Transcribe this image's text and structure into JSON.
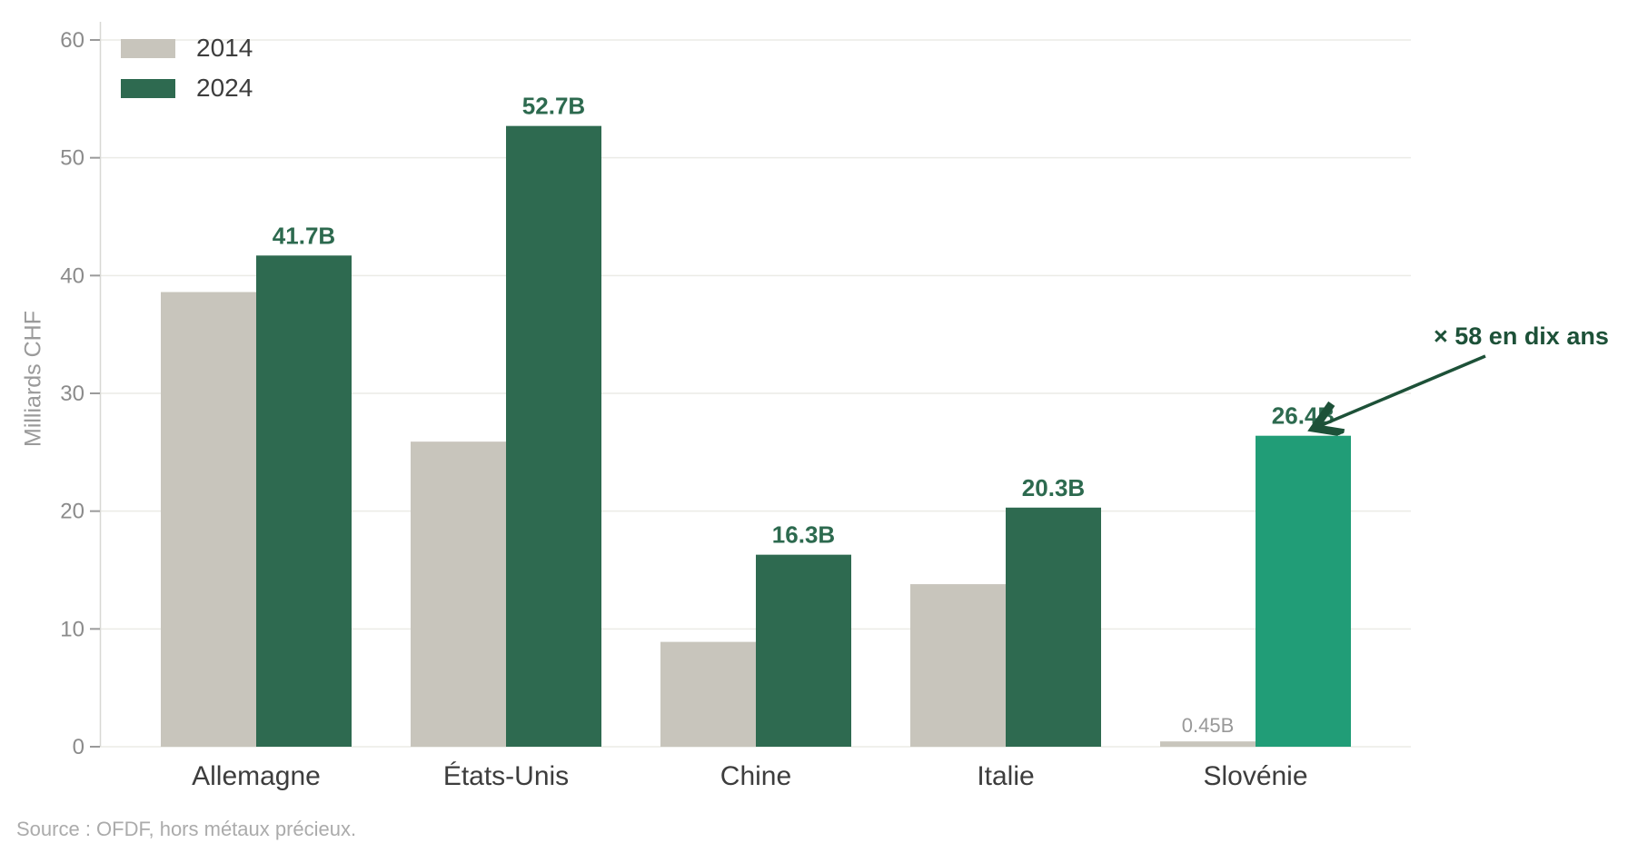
{
  "chart_data": {
    "type": "bar",
    "title": "",
    "categories": [
      "Allemagne",
      "États-Unis",
      "Chine",
      "Italie",
      "Slovénie"
    ],
    "series": [
      {
        "name": "2014",
        "values": [
          38.6,
          25.9,
          8.9,
          13.8,
          0.45
        ]
      },
      {
        "name": "2024",
        "values": [
          41.7,
          52.7,
          16.3,
          20.3,
          26.4
        ]
      }
    ],
    "value_labels": {
      "s2014": [
        "",
        "",
        "",
        "",
        "0.45B"
      ],
      "s2024": [
        "41.7B",
        "52.7B",
        "16.3B",
        "20.3B",
        "26.4B"
      ]
    },
    "ylabel": "Milliards CHF",
    "xlabel": "",
    "ylim": [
      0,
      60
    ],
    "yticks": [
      0,
      10,
      20,
      30,
      40,
      50,
      60
    ],
    "grid": true,
    "legend": {
      "position": "top-left",
      "entries": [
        "2014",
        "2024"
      ]
    },
    "annotation": {
      "text": "× 58 en dix ans",
      "target_category": "Slovénie",
      "target_series": "2024"
    },
    "highlight": {
      "series": "2024",
      "category_index": 4
    },
    "source": "Source : OFDF, hors métaux précieux."
  },
  "colors": {
    "bar_2014": "#c8c5bc",
    "bar_2024": "#2e6a50",
    "bar_2024_highlight": "#219d77",
    "value_label": "#2d6a4f",
    "muted_value_label": "#999999",
    "annotation": "#1d5138",
    "axis_text": "#8b8b8b",
    "category_text": "#3d3d3d",
    "legend_text": "#3d3d3d",
    "grid_line": "#ebebe6",
    "axis_line": "#d8d8d4",
    "tick_mark": "#9a9a9a",
    "source_text": "#ababab",
    "background": "#ffffff"
  }
}
